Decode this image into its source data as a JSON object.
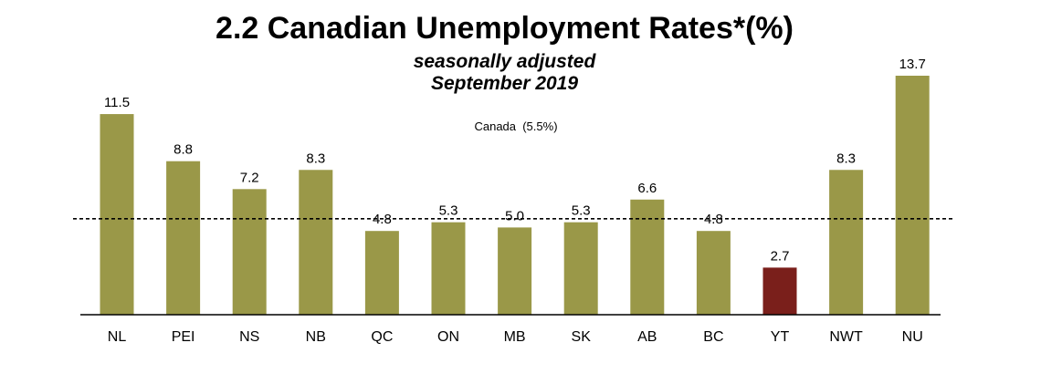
{
  "chart_data": {
    "type": "bar",
    "title": "2.2 Canadian Unemployment Rates*(%)",
    "subtitle_line1": "seasonally adjusted",
    "subtitle_line2": "September 2019",
    "categories": [
      "NL",
      "PEI",
      "NS",
      "NB",
      "QC",
      "ON",
      "MB",
      "SK",
      "AB",
      "BC",
      "YT",
      "NWT",
      "NU"
    ],
    "values": [
      11.5,
      8.8,
      7.2,
      8.3,
      4.8,
      5.3,
      5.0,
      5.3,
      6.6,
      4.8,
      2.7,
      8.3,
      13.7
    ],
    "value_labels": [
      "11.5",
      "8.8",
      "7.2",
      "8.3",
      "4.8",
      "5.3",
      "5.0",
      "5.3",
      "6.6",
      "4.8",
      "2.7",
      "8.3",
      "13.7"
    ],
    "reference_line": {
      "label": "Canada  (5.5%)",
      "value": 5.5,
      "style": "dashed"
    },
    "highlight_category": "YT",
    "xlabel": "",
    "ylabel": "",
    "ylim": [
      0,
      14.5
    ],
    "grid": false
  },
  "colors": {
    "bar": "#9a9848",
    "highlight": "#7a1f1b",
    "axis": "#000000",
    "text": "#000000"
  }
}
